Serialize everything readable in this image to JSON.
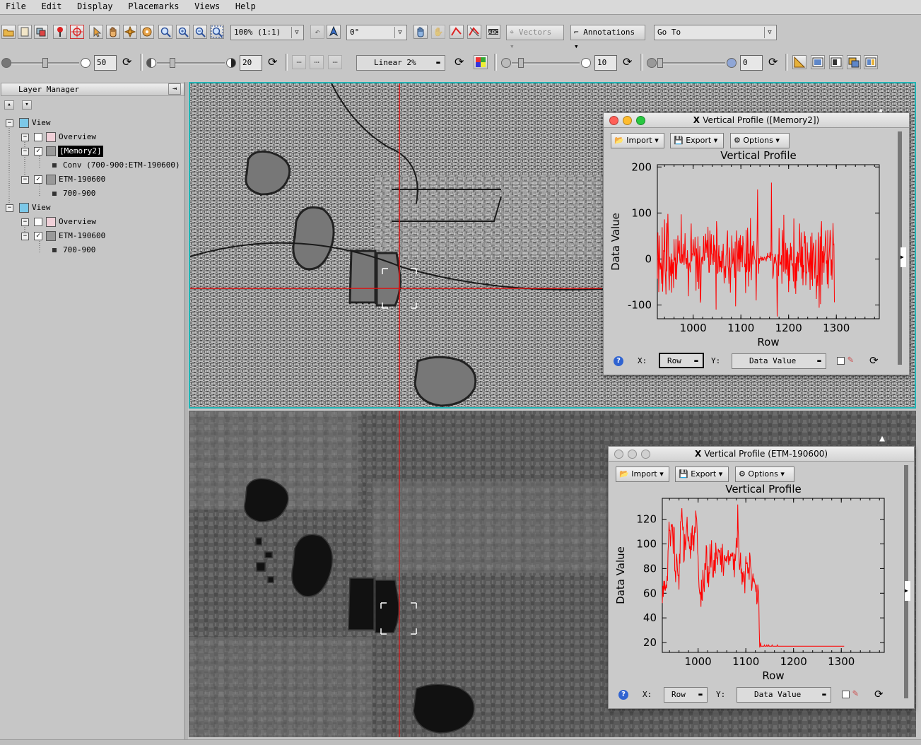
{
  "menu": [
    "File",
    "Edit",
    "Display",
    "Placemarks",
    "Views",
    "Help"
  ],
  "toolbar": {
    "zoom_value": "100% (1:1)",
    "rotation_value": "0°",
    "vectors_label": "Vectors",
    "annotations_label": "Annotations",
    "goto_value": "Go To",
    "brightness_value": "50",
    "contrast_value": "20",
    "stretch_value": "Linear 2%",
    "sharpen_value": "10",
    "transparency_value": "0"
  },
  "layer_manager": {
    "title": "Layer Manager",
    "tree": [
      {
        "label": "View",
        "level": 0,
        "kind": "view"
      },
      {
        "label": "Overview",
        "level": 1,
        "kind": "overview",
        "checked": false
      },
      {
        "label": "[Memory2]",
        "level": 1,
        "kind": "raster",
        "checked": true,
        "selected": true
      },
      {
        "label": "Conv (700-900:ETM-190600)",
        "level": 2,
        "kind": "band"
      },
      {
        "label": "ETM-190600",
        "level": 1,
        "kind": "raster",
        "checked": true
      },
      {
        "label": "700-900",
        "level": 2,
        "kind": "band"
      },
      {
        "label": "View",
        "level": 0,
        "kind": "view"
      },
      {
        "label": "Overview",
        "level": 1,
        "kind": "overview",
        "checked": false
      },
      {
        "label": "ETM-190600",
        "level": 1,
        "kind": "raster",
        "checked": true
      },
      {
        "label": "700-900",
        "level": 2,
        "kind": "band"
      }
    ]
  },
  "profiles": {
    "top": {
      "window_title": "Vertical Profile ([Memory2])",
      "import_label": "Import",
      "export_label": "Export",
      "options_label": "Options",
      "x_label": "X:",
      "y_label": "Y:",
      "x_value": "Row",
      "y_value": "Data Value"
    },
    "bottom": {
      "window_title": "Vertical Profile (ETM-190600)",
      "import_label": "Import",
      "export_label": "Export",
      "options_label": "Options",
      "x_label": "X:",
      "y_label": "Y:",
      "x_value": "Row",
      "y_value": "Data Value"
    }
  },
  "chart_data": [
    {
      "type": "line",
      "title": "Vertical Profile",
      "xlabel": "Row",
      "ylabel": "Data Value",
      "xlim": [
        925,
        1390
      ],
      "ylim": [
        -130,
        205
      ],
      "xticks": [
        1000,
        1100,
        1200,
        1300
      ],
      "yticks": [
        -100,
        0,
        100,
        200
      ],
      "line_color": "#ff0000",
      "x_start": 925,
      "x_step": 1,
      "y_values": [
        -43,
        58,
        13,
        -72,
        51,
        -9,
        -23,
        -8,
        -19,
        -54,
        69,
        -71,
        -33,
        18,
        17,
        86,
        -20,
        -40,
        -77,
        78,
        -27,
        46,
        98,
        53,
        -35,
        -68,
        5,
        -19,
        -37,
        12,
        -73,
        -1,
        -32,
        -7,
        -63,
        43,
        -3,
        3,
        -44,
        43,
        -45,
        -14,
        -6,
        51,
        12,
        22,
        40,
        -1,
        -9,
        7,
        97,
        -10,
        10,
        -8,
        33,
        12,
        -13,
        13,
        56,
        4,
        -11,
        2,
        -21,
        19,
        -7,
        -81,
        -11,
        -8,
        -17,
        -29,
        41,
        77,
        -5,
        11,
        10,
        43,
        22,
        6,
        10,
        48,
        16,
        -69,
        23,
        6,
        -50,
        49,
        -4,
        -65,
        -6,
        28,
        -95,
        -87,
        -11,
        3,
        4,
        -12,
        11,
        50,
        -4,
        -1,
        29,
        55,
        13,
        30,
        41,
        3,
        70,
        12,
        -29,
        -29,
        62,
        31,
        -13,
        54,
        11,
        11,
        -2,
        -13,
        52,
        -7,
        31,
        21,
        16,
        -110,
        82,
        62,
        -32,
        -29,
        7,
        30,
        -28,
        6,
        -18,
        -4,
        -29,
        18,
        -20,
        7,
        33,
        -11,
        -53,
        -22,
        -15,
        -41,
        7,
        13,
        42,
        62,
        -15,
        -23,
        -54,
        25,
        12,
        -73,
        -20,
        -16,
        51,
        14,
        -11,
        -3,
        23,
        -13,
        -41,
        38,
        -103,
        -33,
        62,
        35,
        13,
        -27,
        40,
        -1,
        46,
        -28,
        52,
        -7,
        23,
        30,
        -18,
        50,
        35,
        31,
        6,
        -18,
        -10,
        -74,
        63,
        -29,
        -22,
        68,
        38,
        -60,
        12,
        -28,
        -10,
        89,
        -17,
        -46,
        12,
        29,
        -12,
        17,
        39,
        7,
        0,
        -3,
        -13,
        -90,
        -10,
        47,
        151,
        22,
        -32,
        2,
        -10,
        2,
        -1,
        5,
        3,
        -4,
        4,
        -1,
        0,
        -3,
        4,
        4,
        0,
        0,
        -5,
        6,
        1,
        13,
        5,
        6,
        4,
        3,
        15,
        5,
        -4,
        166,
        9,
        10,
        -43,
        -34,
        -9,
        4,
        -10,
        11,
        -1,
        -7,
        -15,
        -125,
        -44,
        10,
        -37,
        67,
        3,
        -14,
        -8,
        -10,
        8,
        -54,
        63,
        37,
        -28,
        96,
        -10,
        -23,
        -32,
        35,
        -23,
        20,
        -36,
        24,
        -4,
        -72,
        10,
        -48,
        -9,
        35,
        -3,
        27,
        -14,
        -9,
        -19,
        -49,
        88,
        -16,
        -64,
        -9,
        -76,
        5,
        -48,
        2,
        16,
        -27,
        13,
        -8,
        77,
        35,
        -12,
        -18,
        58,
        -43,
        27,
        -57,
        -13,
        -29,
        60,
        34,
        50,
        -57,
        -28,
        -31,
        36,
        2,
        -12,
        -29,
        14,
        -5,
        -67,
        49,
        -9,
        -45,
        57,
        -59,
        16,
        35,
        24,
        -12,
        -43,
        -4,
        42,
        -87,
        -53,
        -35,
        -59,
        58,
        25,
        -106,
        -21,
        49,
        -98,
        64,
        82,
        -56,
        17,
        -8,
        28,
        -30,
        6,
        18,
        43,
        62,
        -10,
        -3,
        -55,
        63,
        -64,
        -7,
        6,
        30,
        63,
        43,
        -36,
        -1,
        -45,
        4,
        78,
        31,
        32,
        -94
      ]
    },
    {
      "type": "line",
      "title": "Vertical Profile",
      "xlabel": "Row",
      "ylabel": "Data Value",
      "xlim": [
        925,
        1390
      ],
      "ylim": [
        12,
        137
      ],
      "xticks": [
        1000,
        1100,
        1200,
        1300
      ],
      "yticks": [
        20,
        40,
        60,
        80,
        100,
        120
      ],
      "line_color": "#ff0000",
      "x_start": 925,
      "x_step": 1,
      "y_values": [
        52,
        66,
        57,
        70,
        63,
        70,
        62,
        64,
        67,
        64,
        74,
        70,
        94,
        101,
        118,
        111,
        111,
        98,
        107,
        116,
        114,
        116,
        105,
        92,
        114,
        113,
        78,
        78,
        69,
        84,
        92,
        86,
        78,
        74,
        75,
        63,
        92,
        84,
        118,
        118,
        122,
        129,
        117,
        111,
        114,
        85,
        87,
        108,
        101,
        95,
        108,
        114,
        122,
        107,
        102,
        106,
        102,
        96,
        98,
        88,
        109,
        95,
        112,
        115,
        99,
        107,
        94,
        106,
        114,
        109,
        127,
        123,
        120,
        111,
        93,
        90,
        75,
        65,
        61,
        59,
        61,
        49,
        71,
        55,
        54,
        79,
        71,
        65,
        61,
        84,
        84,
        79,
        99,
        97,
        70,
        68,
        82,
        65,
        77,
        76,
        100,
        88,
        81,
        103,
        88,
        79,
        73,
        73,
        87,
        78,
        93,
        76,
        101,
        94,
        88,
        89,
        83,
        96,
        95,
        93,
        95,
        90,
        83,
        97,
        77,
        87,
        100,
        84,
        74,
        81,
        91,
        89,
        87,
        86,
        90,
        85,
        88,
        90,
        95,
        83,
        87,
        90,
        86,
        92,
        90,
        90,
        93,
        90,
        93,
        79,
        88,
        73,
        92,
        86,
        92,
        105,
        98,
        97,
        132,
        111,
        103,
        84,
        79,
        85,
        93,
        76,
        80,
        67,
        77,
        69,
        75,
        78,
        74,
        60,
        79,
        90,
        84,
        84,
        85,
        76,
        77,
        81,
        71,
        93,
        90,
        82,
        79,
        62,
        65,
        72,
        76,
        69,
        72,
        70,
        68,
        66,
        61,
        67,
        51,
        53,
        67,
        63,
        61,
        32,
        16,
        17,
        20,
        17,
        17,
        17,
        17,
        17,
        17,
        17,
        18,
        17,
        17,
        17,
        17,
        18,
        17,
        17,
        17,
        18,
        17,
        17,
        17,
        17,
        17,
        17,
        18,
        17,
        17,
        17,
        17,
        17,
        17,
        17,
        17,
        17,
        17,
        18,
        17,
        17,
        17,
        17,
        17,
        17,
        17,
        17,
        17,
        17,
        17,
        17,
        17,
        17,
        17,
        17,
        17,
        17,
        17,
        17,
        17,
        17,
        17,
        17,
        17,
        17,
        17,
        17,
        17,
        17,
        17,
        17,
        17,
        17,
        17,
        17,
        17,
        17,
        17,
        17,
        17,
        17,
        17,
        17,
        17,
        17,
        17,
        17,
        17,
        17,
        17,
        17,
        17,
        17,
        17,
        17,
        17,
        17,
        17,
        17,
        17,
        17,
        17,
        17,
        17,
        17,
        17,
        17,
        17,
        17,
        17,
        17,
        17,
        17,
        17,
        17,
        17,
        17,
        17,
        17,
        17,
        17,
        17,
        17,
        17,
        17,
        17,
        17,
        17,
        17,
        17,
        17,
        17,
        17,
        17,
        17,
        17,
        17,
        17,
        17,
        17,
        17,
        17,
        17,
        17,
        17,
        17,
        17,
        17,
        17,
        17,
        17,
        17,
        17,
        17,
        17,
        17,
        17,
        17,
        17,
        17,
        17,
        17,
        17,
        17,
        17,
        17,
        17,
        17,
        17,
        17,
        17,
        17,
        17,
        17,
        17,
        17,
        17,
        17,
        17
      ]
    }
  ]
}
